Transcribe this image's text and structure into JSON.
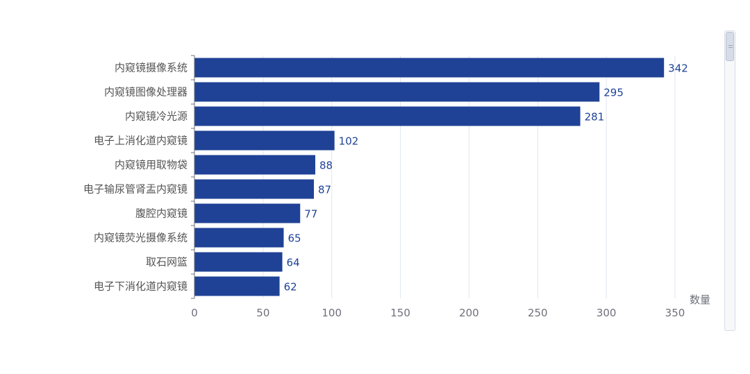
{
  "chart_data": {
    "type": "bar",
    "orientation": "horizontal",
    "categories": [
      "内窥镜摄像系统",
      "内窥镜图像处理器",
      "内窥镜冷光源",
      "电子上消化道内窥镜",
      "内窥镜用取物袋",
      "电子输尿管肾盂内窥镜",
      "腹腔内窥镜",
      "内窥镜荧光摄像系统",
      "取石网篮",
      "电子下消化道内窥镜"
    ],
    "values": [
      342,
      295,
      281,
      102,
      88,
      87,
      77,
      65,
      64,
      62
    ],
    "xlabel": "数量",
    "xlim": [
      0,
      350
    ],
    "xticks": [
      0,
      50,
      100,
      150,
      200,
      250,
      300,
      350
    ],
    "grid": true,
    "data_labels": true,
    "bar_color": "#1f4296",
    "label_color": "#1f4296"
  },
  "scrollbar": {
    "icon": "vertical-scrollbar"
  }
}
